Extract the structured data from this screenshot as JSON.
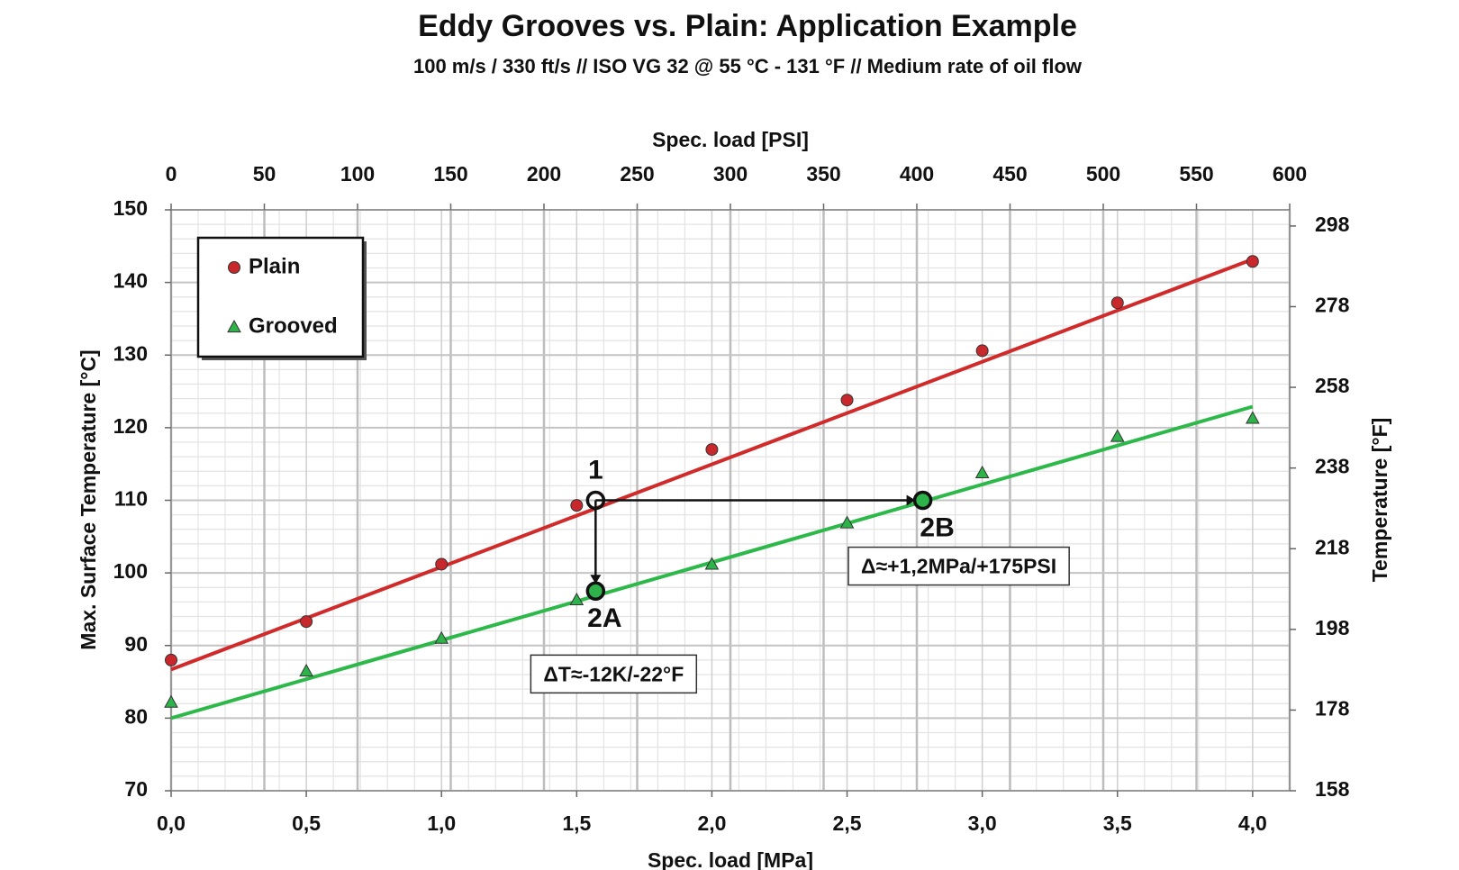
{
  "chart_data": {
    "type": "scatter",
    "title": "Eddy Grooves vs. Plain: Application Example",
    "subtitle": "100 m/s / 330 ft/s // ISO VG 32 @ 55 °C - 131 °F // Medium rate of oil flow",
    "xlabel": "Spec. load [MPa]",
    "x2label": "Spec. load [PSI]",
    "ylabel": "Max. Surface Temperature [°C]",
    "y2label": "Temperature [°F]",
    "xlim": [
      0,
      4.137
    ],
    "xticks": [
      {
        "value": 0,
        "label": "0,0"
      },
      {
        "value": 0.5,
        "label": "0,5"
      },
      {
        "value": 1,
        "label": "1,0"
      },
      {
        "value": 1.5,
        "label": "1,5"
      },
      {
        "value": 2,
        "label": "2,0"
      },
      {
        "value": 2.5,
        "label": "2,5"
      },
      {
        "value": 3,
        "label": "3,0"
      },
      {
        "value": 3.5,
        "label": "3,5"
      },
      {
        "value": 4,
        "label": "4,0"
      }
    ],
    "x2lim": [
      0,
      600
    ],
    "x2ticks": [
      0,
      50,
      100,
      150,
      200,
      250,
      300,
      350,
      400,
      450,
      500,
      550,
      600
    ],
    "ylim": [
      70,
      150
    ],
    "yticks": [
      70,
      80,
      90,
      100,
      110,
      120,
      130,
      140,
      150
    ],
    "y2lim": [
      158,
      302
    ],
    "y2ticks": [
      158,
      178,
      198,
      218,
      238,
      258,
      278,
      298
    ],
    "grid": true,
    "minor_grid": true,
    "legend": "upper left",
    "series": [
      {
        "name": "Plain",
        "color": "#c8282c",
        "marker": "circle",
        "x": [
          0,
          0.5,
          1,
          1.5,
          2,
          2.5,
          3,
          3.5,
          4
        ],
        "values": [
          88,
          93.3,
          101.2,
          109.3,
          117,
          123.8,
          130.6,
          137.2,
          142.9
        ]
      },
      {
        "name": "Grooved",
        "color": "#2db34a",
        "marker": "triangle",
        "x": [
          0,
          0.5,
          1,
          1.5,
          2,
          2.5,
          3,
          3.5,
          4
        ],
        "values": [
          82.2,
          86.5,
          91,
          96.3,
          101.2,
          106.9,
          113.8,
          118.8,
          121.3
        ]
      }
    ],
    "trendlines": [
      {
        "color": "#d02a2a",
        "x": [
          0,
          4
        ],
        "values": [
          86.7,
          143.2
        ]
      },
      {
        "color": "#2db84a",
        "x": [
          0,
          4
        ],
        "values": [
          80,
          122.9
        ]
      }
    ],
    "annotations": [
      {
        "label": "1",
        "x": 1.57,
        "y": 110
      },
      {
        "label": "2A",
        "x": 1.57,
        "y": 97.5
      },
      {
        "label": "2B",
        "x": 2.78,
        "y": 110
      }
    ],
    "deltas": [
      "ΔT≈-12K/-22°F",
      "Δ≈+1,2MPa/+175PSI"
    ]
  }
}
